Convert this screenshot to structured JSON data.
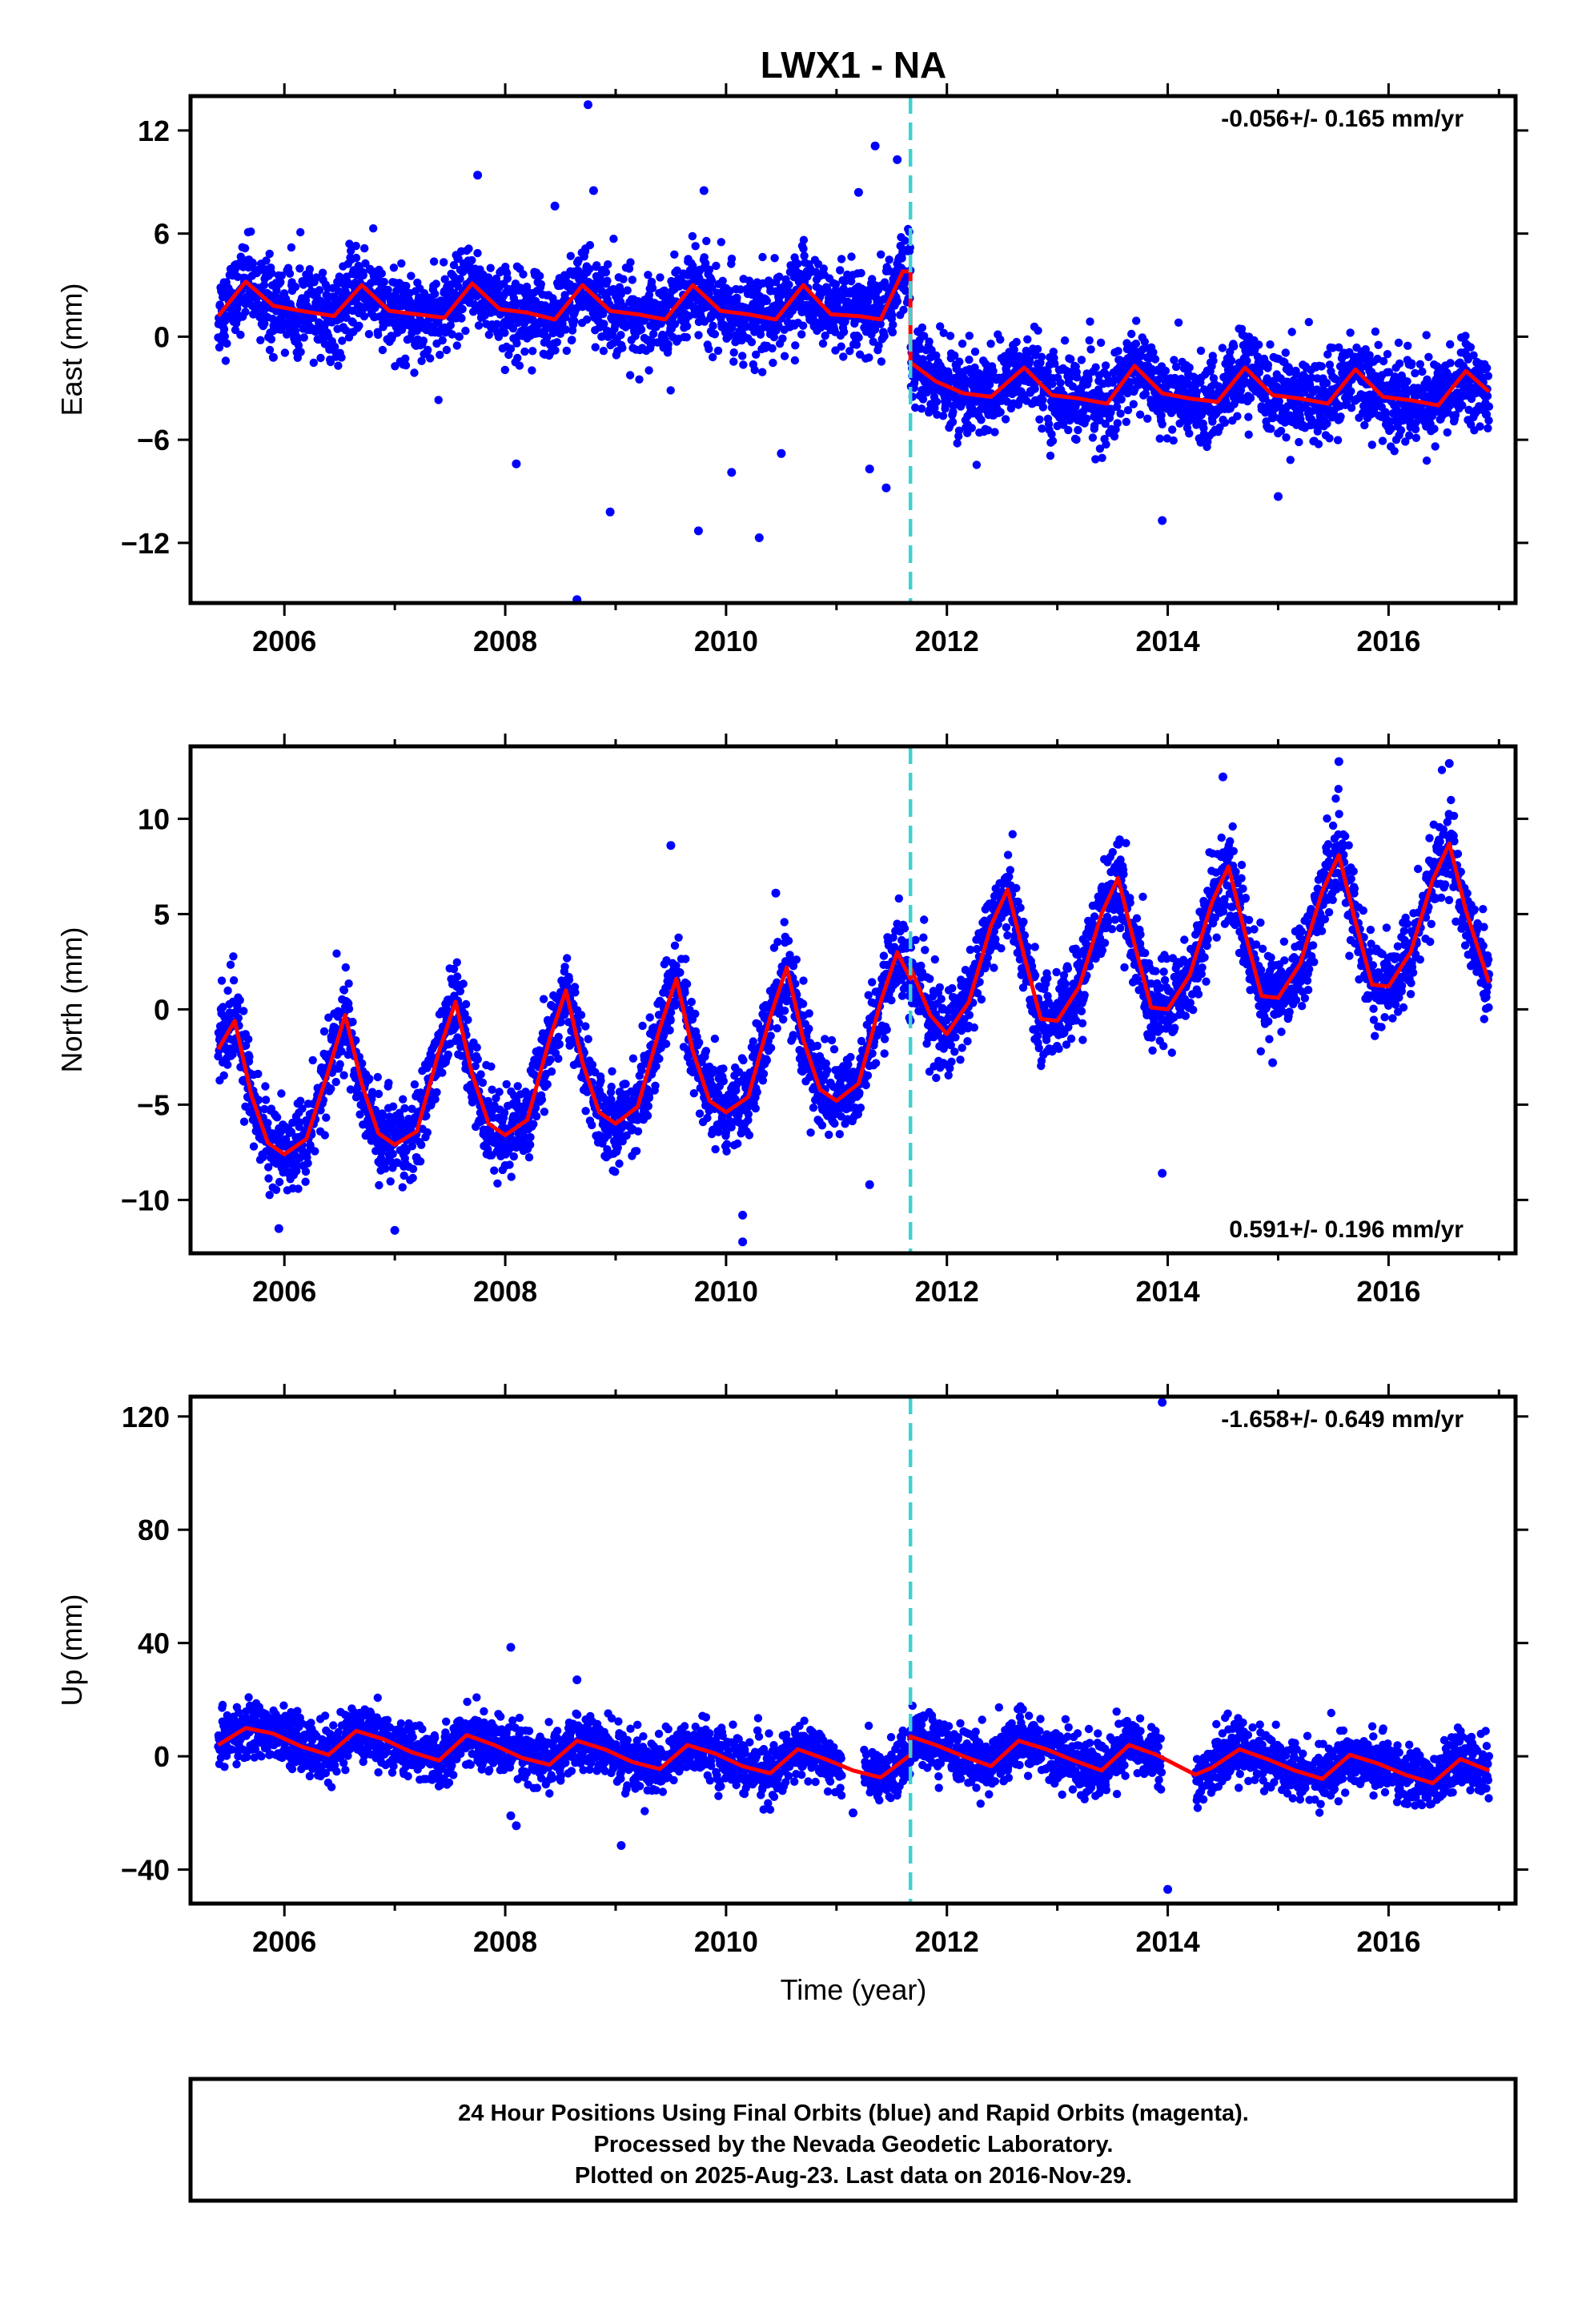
{
  "chart_data": {
    "type": "scatter",
    "title": "LWX1 - NA",
    "colors": {
      "points": "#0000ff",
      "fit": "#ff0000",
      "offset_line": "#40d0d0",
      "frame": "#000000"
    },
    "xlim": [
      2005.15,
      2017.15
    ],
    "xticks": [
      "2006",
      "2008",
      "2010",
      "2012",
      "2014",
      "2016"
    ],
    "xtick_values": [
      2006,
      2008,
      2010,
      2012,
      2014,
      2016
    ],
    "xlabel": "Time (year)",
    "offset_epoch": 2011.67,
    "data_span": [
      2005.4,
      2016.91
    ],
    "panels": [
      {
        "id": "east",
        "ylabel": "East (mm)",
        "ylim": [
          -15.5,
          14
        ],
        "yticks": [
          "12",
          "6",
          "0",
          "−6",
          "−12"
        ],
        "ytick_values": [
          12,
          6,
          0,
          -6,
          -12
        ],
        "rate_text": "-0.056+/- 0.165 mm/yr",
        "rate_position": "top-right",
        "pre_offset_level": 2.0,
        "post_offset_level": -2.8,
        "seasonal_amplitude": 1.0,
        "noise_sd": 1.2,
        "outliers": [
          [
            2005.9,
            -1.2
          ],
          [
            2008.75,
            13.5
          ],
          [
            2008.65,
            -15.3
          ],
          [
            2007.75,
            9.4
          ],
          [
            2008.1,
            -7.4
          ],
          [
            2008.95,
            -10.2
          ],
          [
            2009.75,
            -11.3
          ],
          [
            2010.3,
            -11.7
          ],
          [
            2011.35,
            11.1
          ],
          [
            2011.55,
            10.3
          ],
          [
            2011.2,
            8.4
          ],
          [
            2008.8,
            8.5
          ],
          [
            2008.45,
            7.6
          ],
          [
            2009.8,
            8.5
          ],
          [
            2010.5,
            -6.8
          ],
          [
            2010.05,
            -7.9
          ],
          [
            2011.45,
            -8.8
          ],
          [
            2013.95,
            -10.7
          ],
          [
            2015.0,
            -9.3
          ],
          [
            2011.3,
            -7.7
          ]
        ],
        "fit_points": [
          [
            2005.4,
            1.2
          ],
          [
            2005.65,
            3.2
          ],
          [
            2005.9,
            1.8
          ],
          [
            2006.15,
            1.5
          ],
          [
            2006.45,
            1.2
          ],
          [
            2006.7,
            3.0
          ],
          [
            2006.95,
            1.5
          ],
          [
            2007.2,
            1.3
          ],
          [
            2007.45,
            1.1
          ],
          [
            2007.7,
            3.1
          ],
          [
            2007.95,
            1.6
          ],
          [
            2008.2,
            1.4
          ],
          [
            2008.45,
            1.0
          ],
          [
            2008.7,
            3.0
          ],
          [
            2008.95,
            1.5
          ],
          [
            2009.2,
            1.3
          ],
          [
            2009.45,
            1.0
          ],
          [
            2009.7,
            3.0
          ],
          [
            2009.95,
            1.5
          ],
          [
            2010.2,
            1.3
          ],
          [
            2010.45,
            1.0
          ],
          [
            2010.7,
            3.0
          ],
          [
            2010.95,
            1.3
          ],
          [
            2011.2,
            1.2
          ],
          [
            2011.4,
            1.0
          ],
          [
            2011.6,
            3.8
          ],
          [
            2011.67,
            3.8
          ],
          [
            2011.67,
            -1.5
          ],
          [
            2011.9,
            -2.6
          ],
          [
            2012.15,
            -3.3
          ],
          [
            2012.4,
            -3.5
          ],
          [
            2012.7,
            -1.8
          ],
          [
            2012.95,
            -3.4
          ],
          [
            2013.2,
            -3.6
          ],
          [
            2013.45,
            -3.9
          ],
          [
            2013.7,
            -1.7
          ],
          [
            2013.95,
            -3.3
          ],
          [
            2014.2,
            -3.6
          ],
          [
            2014.45,
            -3.8
          ],
          [
            2014.7,
            -1.8
          ],
          [
            2014.95,
            -3.4
          ],
          [
            2015.2,
            -3.6
          ],
          [
            2015.45,
            -3.9
          ],
          [
            2015.7,
            -1.9
          ],
          [
            2015.95,
            -3.5
          ],
          [
            2016.2,
            -3.7
          ],
          [
            2016.45,
            -4.0
          ],
          [
            2016.7,
            -2.0
          ],
          [
            2016.91,
            -3.2
          ]
        ]
      },
      {
        "id": "north",
        "ylabel": "North (mm)",
        "ylim": [
          -12.8,
          13.8
        ],
        "yticks": [
          "10",
          "5",
          "0",
          "−5",
          "−10"
        ],
        "ytick_values": [
          10,
          5,
          0,
          -5,
          -10
        ],
        "rate_text": "0.591+/- 0.196 mm/yr",
        "rate_position": "bottom-right",
        "trend": 0.59,
        "trend_ref_year": 2011.0,
        "trend_ref_value": -0.5,
        "seasonal_amplitude": 4.3,
        "post_offset_shift": 0.6,
        "noise_sd": 1.1,
        "outliers": [
          [
            2009.5,
            8.6
          ],
          [
            2010.45,
            6.1
          ],
          [
            2010.15,
            -12.2
          ],
          [
            2010.15,
            -10.8
          ],
          [
            2008.0,
            -8.2
          ],
          [
            2011.3,
            -9.2
          ],
          [
            2013.95,
            -8.6
          ],
          [
            2014.95,
            -2.8
          ],
          [
            2015.55,
            13.0
          ],
          [
            2016.55,
            12.9
          ],
          [
            2014.5,
            12.2
          ],
          [
            2007.0,
            -11.6
          ],
          [
            2005.95,
            -11.5
          ]
        ],
        "fit_points": [
          [
            2005.4,
            -2.1
          ],
          [
            2005.55,
            -0.6
          ],
          [
            2005.7,
            -4.5
          ],
          [
            2005.85,
            -7.0
          ],
          [
            2006.0,
            -7.6
          ],
          [
            2006.2,
            -6.8
          ],
          [
            2006.4,
            -3.2
          ],
          [
            2006.55,
            -0.3
          ],
          [
            2006.7,
            -3.9
          ],
          [
            2006.85,
            -6.5
          ],
          [
            2007.0,
            -7.1
          ],
          [
            2007.2,
            -6.4
          ],
          [
            2007.4,
            -2.2
          ],
          [
            2007.55,
            0.4
          ],
          [
            2007.7,
            -3.4
          ],
          [
            2007.85,
            -6.0
          ],
          [
            2008.0,
            -6.6
          ],
          [
            2008.2,
            -5.8
          ],
          [
            2008.4,
            -1.6
          ],
          [
            2008.55,
            1.0
          ],
          [
            2008.7,
            -2.8
          ],
          [
            2008.85,
            -5.4
          ],
          [
            2009.0,
            -6.0
          ],
          [
            2009.2,
            -5.1
          ],
          [
            2009.4,
            -1.0
          ],
          [
            2009.55,
            1.6
          ],
          [
            2009.7,
            -2.2
          ],
          [
            2009.85,
            -4.8
          ],
          [
            2010.0,
            -5.4
          ],
          [
            2010.2,
            -4.6
          ],
          [
            2010.4,
            -0.4
          ],
          [
            2010.55,
            2.2
          ],
          [
            2010.7,
            -1.6
          ],
          [
            2010.85,
            -4.2
          ],
          [
            2011.0,
            -4.8
          ],
          [
            2011.2,
            -3.9
          ],
          [
            2011.4,
            0.4
          ],
          [
            2011.55,
            3.0
          ],
          [
            2011.67,
            1.6
          ],
          [
            2011.67,
            2.2
          ],
          [
            2011.85,
            -0.3
          ],
          [
            2012.0,
            -1.3
          ],
          [
            2012.2,
            0.4
          ],
          [
            2012.4,
            4.4
          ],
          [
            2012.55,
            6.3
          ],
          [
            2012.7,
            2.8
          ],
          [
            2012.85,
            -0.5
          ],
          [
            2013.0,
            -0.6
          ],
          [
            2013.2,
            1.2
          ],
          [
            2013.4,
            5.0
          ],
          [
            2013.55,
            6.9
          ],
          [
            2013.7,
            3.4
          ],
          [
            2013.85,
            0.1
          ],
          [
            2014.0,
            0.0
          ],
          [
            2014.2,
            1.8
          ],
          [
            2014.4,
            5.6
          ],
          [
            2014.55,
            7.5
          ],
          [
            2014.7,
            4.0
          ],
          [
            2014.85,
            0.7
          ],
          [
            2015.0,
            0.6
          ],
          [
            2015.2,
            2.4
          ],
          [
            2015.4,
            6.2
          ],
          [
            2015.55,
            8.1
          ],
          [
            2015.7,
            4.6
          ],
          [
            2015.85,
            1.3
          ],
          [
            2016.0,
            1.2
          ],
          [
            2016.2,
            3.0
          ],
          [
            2016.4,
            6.8
          ],
          [
            2016.55,
            8.7
          ],
          [
            2016.7,
            5.2
          ],
          [
            2016.91,
            1.4
          ]
        ]
      },
      {
        "id": "up",
        "ylabel": "Up (mm)",
        "ylim": [
          -52,
          127
        ],
        "yticks": [
          "120",
          "80",
          "40",
          "0",
          "−40"
        ],
        "ytick_values": [
          120,
          80,
          40,
          0,
          -40
        ],
        "rate_text": "-1.658+/- 0.649 mm/yr",
        "rate_position": "top-right",
        "seasonal_amplitude": 4.5,
        "noise_sd": 4.8,
        "gaps": [
          [
            2011.05,
            2011.25
          ],
          [
            2013.95,
            2014.25
          ]
        ],
        "outliers": [
          [
            2013.95,
            125.0
          ],
          [
            2014.0,
            -47.0
          ],
          [
            2008.05,
            38.5
          ],
          [
            2008.1,
            -24.5
          ],
          [
            2008.05,
            -21.0
          ],
          [
            2009.05,
            -31.5
          ],
          [
            2008.65,
            27.0
          ],
          [
            2011.15,
            -20.0
          ]
        ],
        "fit_points": [
          [
            2005.4,
            4.0
          ],
          [
            2005.65,
            10.0
          ],
          [
            2005.9,
            8.0
          ],
          [
            2006.15,
            3.5
          ],
          [
            2006.4,
            0.5
          ],
          [
            2006.65,
            9.0
          ],
          [
            2006.9,
            6.0
          ],
          [
            2007.15,
            1.5
          ],
          [
            2007.4,
            -1.5
          ],
          [
            2007.65,
            7.5
          ],
          [
            2007.9,
            4.0
          ],
          [
            2008.15,
            -0.5
          ],
          [
            2008.4,
            -3.0
          ],
          [
            2008.65,
            5.5
          ],
          [
            2008.9,
            2.5
          ],
          [
            2009.15,
            -2.0
          ],
          [
            2009.4,
            -4.5
          ],
          [
            2009.65,
            4.0
          ],
          [
            2009.9,
            1.0
          ],
          [
            2010.15,
            -3.5
          ],
          [
            2010.4,
            -6.0
          ],
          [
            2010.65,
            2.5
          ],
          [
            2010.9,
            -1.0
          ],
          [
            2011.15,
            -5.0
          ],
          [
            2011.4,
            -7.5
          ],
          [
            2011.67,
            0.5
          ],
          [
            2011.67,
            7.0
          ],
          [
            2011.9,
            4.0
          ],
          [
            2012.15,
            0.0
          ],
          [
            2012.4,
            -3.5
          ],
          [
            2012.65,
            5.5
          ],
          [
            2012.9,
            2.5
          ],
          [
            2013.15,
            -1.5
          ],
          [
            2013.4,
            -5.0
          ],
          [
            2013.65,
            4.0
          ],
          [
            2013.9,
            0.5
          ],
          [
            2014.25,
            -6.5
          ],
          [
            2014.4,
            -4.0
          ],
          [
            2014.65,
            2.5
          ],
          [
            2014.9,
            -1.0
          ],
          [
            2015.15,
            -5.0
          ],
          [
            2015.4,
            -8.0
          ],
          [
            2015.65,
            0.5
          ],
          [
            2015.9,
            -2.5
          ],
          [
            2016.15,
            -6.5
          ],
          [
            2016.4,
            -9.5
          ],
          [
            2016.65,
            -1.0
          ],
          [
            2016.91,
            -5.0
          ]
        ]
      }
    ],
    "footer_lines": [
      "24 Hour Positions Using Final Orbits (blue) and Rapid Orbits (magenta).",
      "Processed by the Nevada Geodetic Laboratory.",
      "Plotted on 2025-Aug-23. Last data on 2016-Nov-29."
    ]
  }
}
